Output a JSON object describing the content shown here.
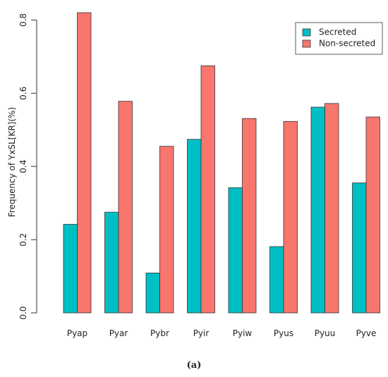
{
  "chart_data": {
    "type": "bar",
    "ylabel": "Frequency of YxSL[KR](%)",
    "categories": [
      "Pyap",
      "Pyar",
      "Pybr",
      "Pyir",
      "Pyiw",
      "Pyus",
      "Pyuu",
      "Pyve"
    ],
    "series": [
      {
        "name": "Secreted",
        "color": "#00bfc4",
        "values": [
          0.242,
          0.275,
          0.109,
          0.474,
          0.342,
          0.181,
          0.562,
          0.355
        ]
      },
      {
        "name": "Non-secreted",
        "color": "#f8766d",
        "values": [
          0.82,
          0.578,
          0.455,
          0.675,
          0.531,
          0.523,
          0.572,
          0.535
        ]
      }
    ],
    "ylim": [
      0,
      0.82
    ],
    "yticks": [
      "0.0",
      "0.2",
      "0.4",
      "0.6",
      "0.8"
    ],
    "legend_position": "top-right",
    "grid": false,
    "caption": "(a)"
  }
}
